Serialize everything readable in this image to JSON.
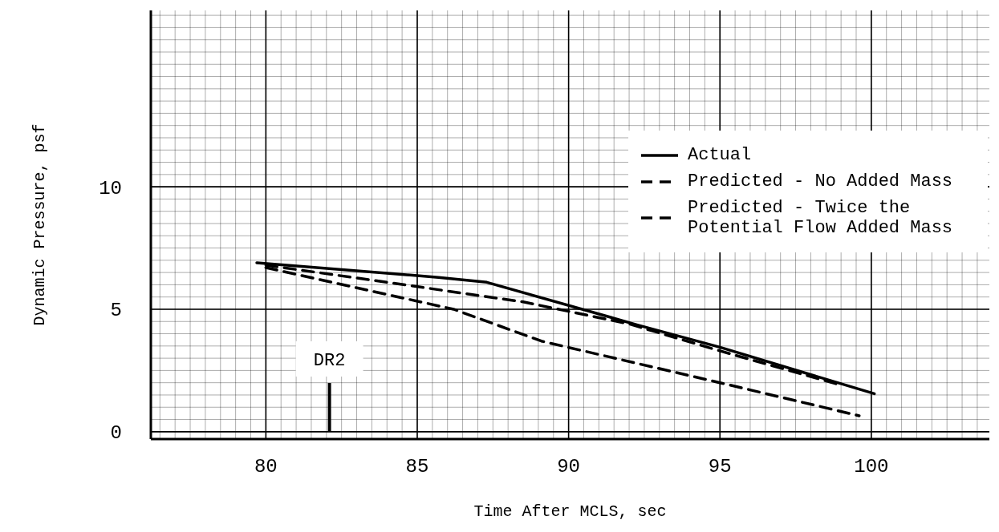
{
  "chart_data": {
    "type": "line",
    "xlabel": "Time After MCLS, sec",
    "ylabel": "Dynamic Pressure, psf",
    "xlim": [
      76.2,
      103.9
    ],
    "xticks": [
      80,
      85,
      90,
      95,
      100
    ],
    "ylim": [
      -0.3,
      17.2
    ],
    "yticks": [
      0,
      5,
      10
    ],
    "grid": true,
    "legend": "top right",
    "marker": "none",
    "series": [
      {
        "name": "Actual",
        "color": "#000000",
        "line_style": "solid",
        "x": [
          79.7,
          85.7,
          87.3,
          92.3,
          95,
          100.1
        ],
        "values": [
          6.9,
          6.3,
          6.1,
          4.35,
          3.45,
          1.55
        ]
      },
      {
        "name": "Predicted - No Added Mass",
        "color": "#000000",
        "line_style": "dashed",
        "x": [
          80,
          84,
          88.5,
          92,
          95,
          99
        ],
        "values": [
          6.8,
          6.1,
          5.3,
          4.4,
          3.3,
          1.9
        ]
      },
      {
        "name": "Predicted - Twice the Potential Flow Added Mass",
        "color": "#000000",
        "line_style": "dashed",
        "x": [
          80,
          86.2,
          89.1,
          95,
          99.6
        ],
        "values": [
          6.7,
          5.0,
          3.7,
          2.0,
          0.65
        ]
      }
    ],
    "ref_lines": [
      {
        "axis": "x",
        "value": 82.1,
        "label": "DR2",
        "color": "#000000"
      }
    ]
  }
}
